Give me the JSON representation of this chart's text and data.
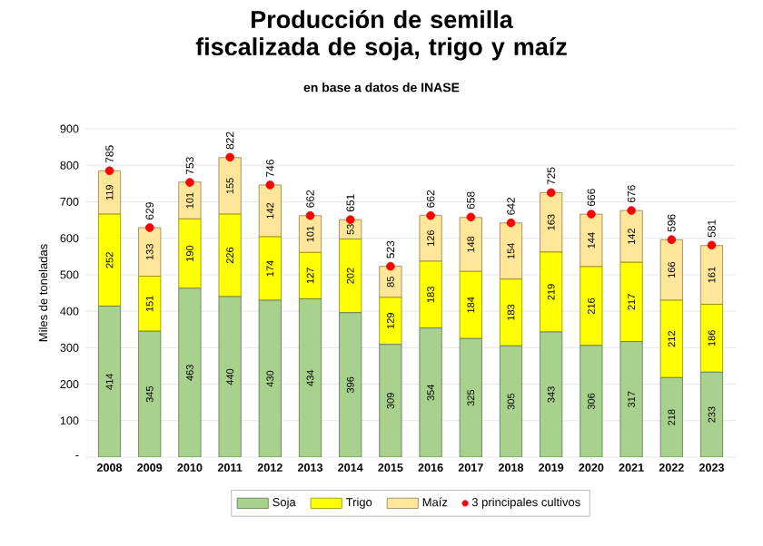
{
  "chart_data": {
    "type": "bar",
    "title": "Producción de semilla fiscalizada de soja, trigo y maíz",
    "subtitle": "en base a datos de INASE",
    "ylabel": "Miles de toneladas",
    "categories": [
      "2008",
      "2009",
      "2010",
      "2011",
      "2012",
      "2013",
      "2014",
      "2015",
      "2016",
      "2017",
      "2018",
      "2019",
      "2020",
      "2021",
      "2022",
      "2023"
    ],
    "series": [
      {
        "name": "Soja",
        "color": "#a9d18e",
        "values": [
          414,
          345,
          463,
          440,
          430,
          434,
          396,
          309,
          354,
          325,
          305,
          343,
          306,
          317,
          218,
          233
        ]
      },
      {
        "name": "Trigo",
        "color": "#ffff00",
        "values": [
          252,
          151,
          190,
          226,
          174,
          127,
          202,
          129,
          183,
          184,
          183,
          219,
          216,
          217,
          212,
          186
        ]
      },
      {
        "name": "Maíz",
        "color": "#ffe699",
        "values": [
          119,
          133,
          101,
          155,
          142,
          101,
          53,
          85,
          126,
          148,
          154,
          163,
          144,
          142,
          166,
          161
        ]
      },
      {
        "name": "3 principales cultivos",
        "type": "scatter",
        "marker": "circle",
        "color": "#ff0000",
        "values": [
          785,
          629,
          753,
          822,
          746,
          662,
          651,
          523,
          662,
          658,
          642,
          725,
          666,
          676,
          596,
          581
        ]
      }
    ],
    "stacked": true,
    "data_labels": true,
    "grid": "y",
    "legend": "bottom",
    "ylim": [
      0,
      900
    ],
    "yticks": [
      {
        "value": 0,
        "label": "-"
      },
      100,
      200,
      300,
      400,
      500,
      600,
      700,
      800,
      900
    ]
  }
}
